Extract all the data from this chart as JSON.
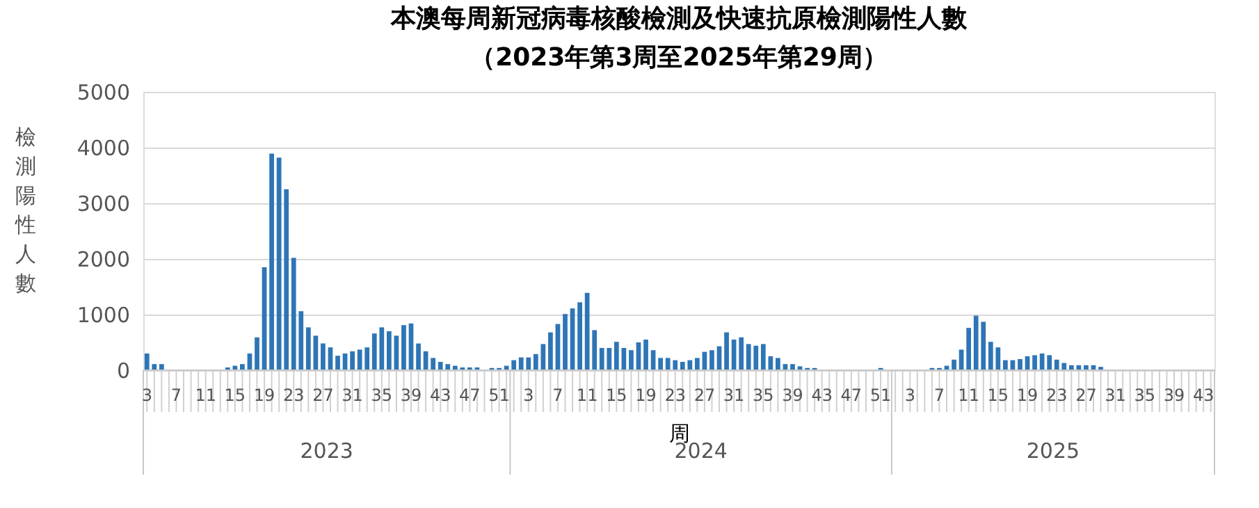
{
  "chart_data": {
    "type": "bar",
    "title": "本澳每周新冠病毒核酸檢測及快速抗原檢測陽性人數",
    "subtitle": "（2023年第3周至2025年第29周）",
    "xlabel": "周",
    "ylabel": "檢測陽性人數",
    "categories": [
      "3",
      null,
      null,
      null,
      "7",
      null,
      null,
      null,
      "11",
      null,
      null,
      null,
      "15",
      null,
      null,
      null,
      "19",
      null,
      null,
      null,
      "23",
      null,
      null,
      null,
      "27",
      null,
      null,
      null,
      "31",
      null,
      null,
      null,
      "35",
      null,
      null,
      null,
      "39",
      null,
      null,
      null,
      "43",
      null,
      null,
      null,
      "47",
      null,
      null,
      null,
      "51",
      null,
      null,
      null,
      "3",
      null,
      null,
      null,
      "7",
      null,
      null,
      null,
      "11",
      null,
      null,
      null,
      "15",
      null,
      null,
      null,
      "19",
      null,
      null,
      null,
      "23",
      null,
      null,
      null,
      "27",
      null,
      null,
      null,
      "31",
      null,
      null,
      null,
      "35",
      null,
      null,
      null,
      "39",
      null,
      null,
      null,
      "43",
      null,
      null,
      null,
      "47",
      null,
      null,
      null,
      "51",
      null,
      null,
      null,
      "3",
      null,
      null,
      null,
      "7",
      null,
      null,
      null,
      "11",
      null,
      null,
      null,
      "15",
      null,
      null,
      null,
      "19",
      null,
      null,
      null,
      "23",
      null,
      null,
      null,
      "27",
      null,
      null,
      null,
      "31",
      null,
      null,
      null,
      "35",
      null,
      null,
      null,
      "39",
      null,
      null,
      null,
      "43",
      null
    ],
    "values": [
      300,
      110,
      110,
      0,
      0,
      0,
      0,
      0,
      0,
      0,
      0,
      50,
      80,
      110,
      300,
      590,
      1850,
      3890,
      3820,
      3250,
      2020,
      1060,
      770,
      620,
      480,
      410,
      260,
      300,
      340,
      370,
      410,
      660,
      770,
      700,
      620,
      810,
      840,
      480,
      340,
      220,
      150,
      110,
      80,
      50,
      50,
      50,
      0,
      40,
      40,
      80,
      180,
      230,
      230,
      290,
      470,
      680,
      830,
      1010,
      1110,
      1220,
      1390,
      720,
      400,
      400,
      510,
      400,
      360,
      500,
      550,
      360,
      220,
      220,
      180,
      150,
      180,
      220,
      330,
      360,
      430,
      680,
      550,
      590,
      470,
      440,
      470,
      250,
      220,
      110,
      110,
      70,
      40,
      40,
      0,
      0,
      0,
      0,
      0,
      0,
      0,
      0,
      40,
      0,
      0,
      0,
      0,
      0,
      0,
      40,
      40,
      80,
      190,
      370,
      760,
      980,
      870,
      510,
      410,
      180,
      180,
      200,
      250,
      270,
      300,
      270,
      190,
      130,
      90,
      90,
      90,
      90,
      60,
      null,
      null,
      null,
      null,
      null,
      null,
      null,
      null,
      null,
      null,
      null,
      null,
      null,
      null,
      null
    ],
    "color": "#2e75b6",
    "ylim": [
      0,
      5000
    ],
    "yticks": [
      0,
      1000,
      2000,
      3000,
      4000,
      5000
    ],
    "grid": "y",
    "annotations": [
      "2023",
      "2024",
      "2025"
    ]
  }
}
